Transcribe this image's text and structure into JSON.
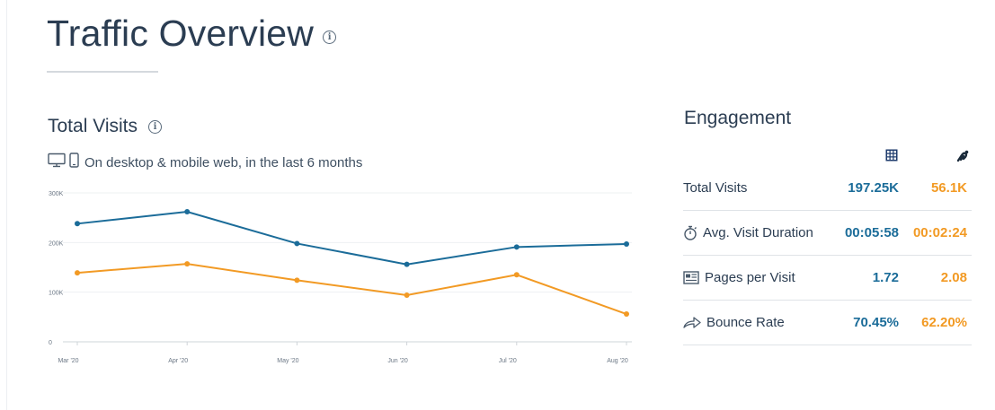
{
  "header": {
    "title": "Traffic Overview"
  },
  "total_visits": {
    "title": "Total Visits",
    "subtitle": "On desktop & mobile web, in the last 6 months"
  },
  "chart_data": {
    "type": "line",
    "title": "",
    "xlabel": "",
    "ylabel": "",
    "categories": [
      "Mar '20",
      "Apr '20",
      "May '20",
      "Jun '20",
      "Jul '20",
      "Aug '20"
    ],
    "y_ticks": [
      "0",
      "100K",
      "200K",
      "300K"
    ],
    "ylim": [
      0,
      300000
    ],
    "grid": true,
    "series": [
      {
        "color": "#1b6c99",
        "values": [
          238000,
          262000,
          198000,
          156000,
          191000,
          197000
        ]
      },
      {
        "color": "#f29a24",
        "values": [
          139000,
          157000,
          124000,
          94000,
          135000,
          56000
        ]
      }
    ]
  },
  "engagement": {
    "title": "Engagement",
    "col1_icon": "grid-logo-icon",
    "col2_icon": "link-logo-icon",
    "colors": {
      "col1": "#1b6c99",
      "col2": "#f29a24"
    },
    "rows": [
      {
        "icon": "",
        "label": "Total Visits",
        "v1": "197.25K",
        "v2": "56.1K"
      },
      {
        "icon": "stopwatch-icon",
        "label": "Avg. Visit Duration",
        "v1": "00:05:58",
        "v2": "00:02:24"
      },
      {
        "icon": "pages-icon",
        "label": "Pages per Visit",
        "v1": "1.72",
        "v2": "2.08"
      },
      {
        "icon": "bounce-arrow-icon",
        "label": "Bounce Rate",
        "v1": "70.45%",
        "v2": "62.20%"
      }
    ]
  }
}
